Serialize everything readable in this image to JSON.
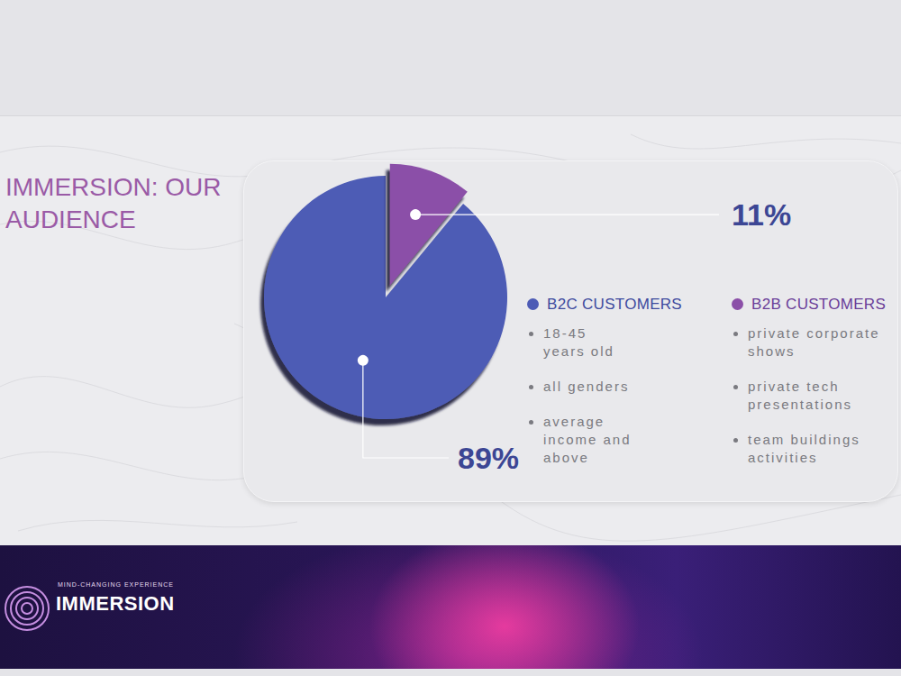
{
  "chart_data": {
    "type": "pie",
    "title": "IMMERSION: OUR AUDIENCE",
    "categories": [
      "B2C CUSTOMERS",
      "B2B CUSTOMERS"
    ],
    "values": [
      89,
      11
    ],
    "value_labels": [
      "89%",
      "11%"
    ],
    "colors": [
      "#4d5bb5",
      "#8b4fa8"
    ],
    "data_labels": true
  },
  "segment_details": [
    [
      "18-45 years old",
      "all genders",
      "average income and above"
    ],
    [
      "private corporate shows",
      "private tech presentations",
      "team buildings activities"
    ]
  ],
  "logo": {
    "name": "IMMERSION",
    "tagline": "MIND-CHANGING EXPERIENCE"
  }
}
